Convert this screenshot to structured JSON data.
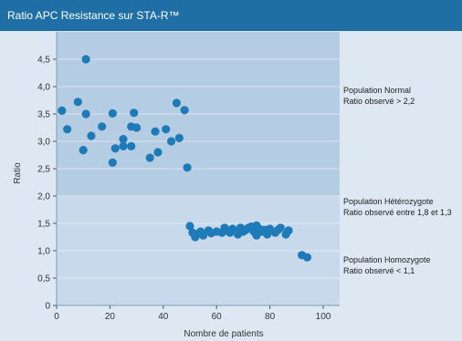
{
  "title": "Ratio APC Resistance sur STA-R™",
  "chart_data": {
    "type": "scatter",
    "title": "Ratio APC Resistance sur STA-R™",
    "xlabel": "Nombre de patients",
    "ylabel": "Ratio",
    "xlim": [
      0,
      100
    ],
    "ylim": [
      0,
      5
    ],
    "x_ticks": [
      0,
      20,
      40,
      60,
      80,
      100
    ],
    "x_tick_labels": [
      "0",
      "20",
      "40",
      "60",
      "80",
      "100"
    ],
    "y_ticks": [
      0,
      0.5,
      1.0,
      1.5,
      2.0,
      2.5,
      3.0,
      3.5,
      4.0,
      4.5
    ],
    "y_tick_labels": [
      "0",
      "0,5",
      "1,0",
      "1,5",
      "2,0",
      "2,5",
      "3,0",
      "3,5",
      "4,0",
      "4,5"
    ],
    "grid": "horizontal",
    "colors": {
      "title_bar": "#1f6fa6",
      "point": "#1f7ab8",
      "panel": "#b5cde3",
      "panel_band": "#d5e3f0",
      "side_panel": "#dde8f2"
    },
    "annotations": [
      {
        "lines": [
          "Population Normal",
          "Ratio observé > 2,2"
        ]
      },
      {
        "lines": [
          "Population Hétérozygote",
          "Ratio observé entre 1,8 et 1,3"
        ]
      },
      {
        "lines": [
          "Population Homozygote",
          "Ratio observé < 1,1"
        ]
      }
    ],
    "points": [
      {
        "x": 2,
        "y": 3.56
      },
      {
        "x": 4,
        "y": 3.22
      },
      {
        "x": 8,
        "y": 3.72
      },
      {
        "x": 10,
        "y": 2.84
      },
      {
        "x": 11,
        "y": 4.5
      },
      {
        "x": 11,
        "y": 3.5
      },
      {
        "x": 13,
        "y": 3.1
      },
      {
        "x": 17,
        "y": 3.27
      },
      {
        "x": 21,
        "y": 2.61
      },
      {
        "x": 21,
        "y": 3.51
      },
      {
        "x": 22,
        "y": 2.87
      },
      {
        "x": 25,
        "y": 2.91
      },
      {
        "x": 25,
        "y": 3.04
      },
      {
        "x": 28,
        "y": 3.27
      },
      {
        "x": 28,
        "y": 2.91
      },
      {
        "x": 29,
        "y": 3.52
      },
      {
        "x": 30,
        "y": 3.25
      },
      {
        "x": 35,
        "y": 2.7
      },
      {
        "x": 37,
        "y": 3.18
      },
      {
        "x": 38,
        "y": 2.8
      },
      {
        "x": 41,
        "y": 3.22
      },
      {
        "x": 43,
        "y": 3.0
      },
      {
        "x": 45,
        "y": 3.7
      },
      {
        "x": 46,
        "y": 3.06
      },
      {
        "x": 48,
        "y": 3.57
      },
      {
        "x": 49,
        "y": 2.52
      },
      {
        "x": 50,
        "y": 1.45
      },
      {
        "x": 51,
        "y": 1.33
      },
      {
        "x": 52,
        "y": 1.25
      },
      {
        "x": 53,
        "y": 1.31
      },
      {
        "x": 54,
        "y": 1.35
      },
      {
        "x": 55,
        "y": 1.28
      },
      {
        "x": 57,
        "y": 1.37
      },
      {
        "x": 58,
        "y": 1.32
      },
      {
        "x": 60,
        "y": 1.35
      },
      {
        "x": 62,
        "y": 1.33
      },
      {
        "x": 63,
        "y": 1.42
      },
      {
        "x": 64,
        "y": 1.37
      },
      {
        "x": 65,
        "y": 1.33
      },
      {
        "x": 66,
        "y": 1.4
      },
      {
        "x": 67,
        "y": 1.36
      },
      {
        "x": 68,
        "y": 1.3
      },
      {
        "x": 69,
        "y": 1.42
      },
      {
        "x": 70,
        "y": 1.35
      },
      {
        "x": 71,
        "y": 1.38
      },
      {
        "x": 72,
        "y": 1.42
      },
      {
        "x": 73,
        "y": 1.44
      },
      {
        "x": 74,
        "y": 1.35
      },
      {
        "x": 75,
        "y": 1.28
      },
      {
        "x": 75,
        "y": 1.46
      },
      {
        "x": 76,
        "y": 1.4
      },
      {
        "x": 77,
        "y": 1.35
      },
      {
        "x": 78,
        "y": 1.38
      },
      {
        "x": 79,
        "y": 1.3
      },
      {
        "x": 80,
        "y": 1.4
      },
      {
        "x": 82,
        "y": 1.33
      },
      {
        "x": 83,
        "y": 1.38
      },
      {
        "x": 84,
        "y": 1.42
      },
      {
        "x": 86,
        "y": 1.3
      },
      {
        "x": 87,
        "y": 1.37
      },
      {
        "x": 92,
        "y": 0.92
      },
      {
        "x": 94,
        "y": 0.88
      }
    ]
  }
}
